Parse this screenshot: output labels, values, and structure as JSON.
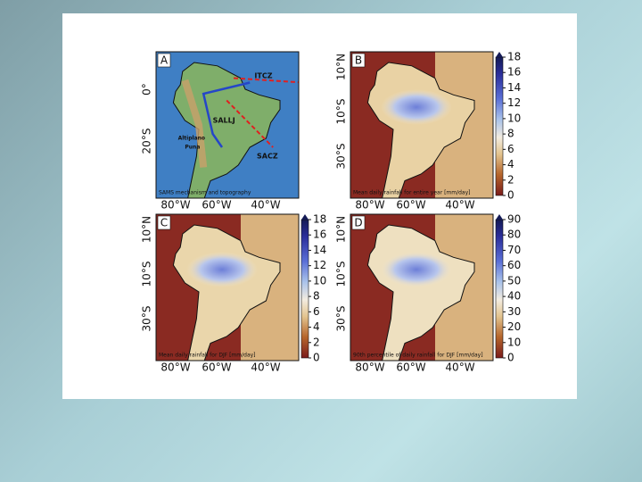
{
  "slide": {
    "panels": [
      {
        "letter": "A",
        "caption": "SAMS mechanism and topography",
        "x_ticks": [
          "80°W",
          "60°W",
          "40°W"
        ],
        "y_ticks": [
          "0°",
          "20°S"
        ],
        "annotations": [
          "ITCZ",
          "SALLJ",
          "SACZ",
          "Altiplano",
          "Puna"
        ]
      },
      {
        "letter": "B",
        "caption": "Mean daily rainfall for entire year [mm/day]",
        "x_ticks": [
          "80°W",
          "60°W",
          "40°W"
        ],
        "y_ticks": [
          "10°N",
          "10°S",
          "30°S"
        ],
        "colorbar": [
          0,
          2,
          4,
          6,
          8,
          10,
          12,
          14,
          16,
          18
        ]
      },
      {
        "letter": "C",
        "caption": "Mean daily rainfall for DJF [mm/day]",
        "x_ticks": [
          "80°W",
          "60°W",
          "40°W"
        ],
        "y_ticks": [
          "10°N",
          "10°S",
          "30°S"
        ],
        "colorbar": [
          0,
          2,
          4,
          6,
          8,
          10,
          12,
          14,
          16,
          18
        ]
      },
      {
        "letter": "D",
        "caption": "90th percentile of daily rainfall for DJF [mm/day]",
        "x_ticks": [
          "80°W",
          "60°W",
          "40°W"
        ],
        "y_ticks": [
          "10°N",
          "10°S",
          "30°S"
        ],
        "colorbar": [
          0,
          10,
          20,
          30,
          40,
          50,
          60,
          70,
          80,
          90
        ]
      }
    ]
  }
}
